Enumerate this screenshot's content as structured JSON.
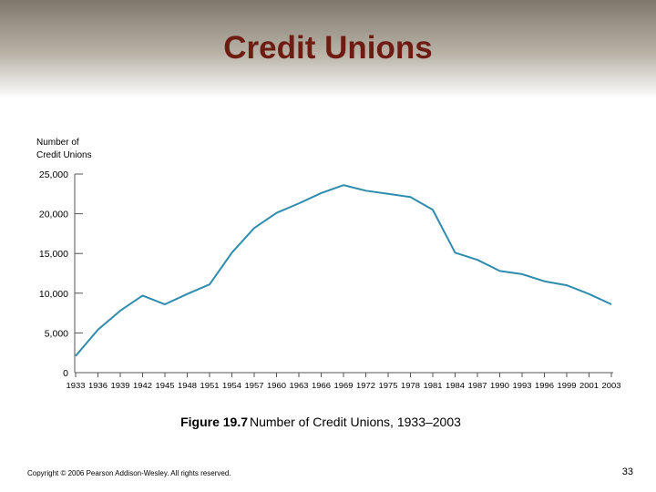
{
  "slide": {
    "title": "Credit Unions",
    "caption_label": "Figure 19.7",
    "caption_text": "Number of Credit Unions, 1933–2003",
    "copyright": "Copyright © 2006 Pearson Addison-Wesley. All rights reserved.",
    "page_number": 33
  },
  "chart_data": {
    "type": "line",
    "y_label": [
      "Number of",
      "Credit Unions"
    ],
    "categories": [
      "1933",
      "1936",
      "1939",
      "1942",
      "1945",
      "1948",
      "1951",
      "1954",
      "1957",
      "1960",
      "1963",
      "1966",
      "1969",
      "1972",
      "1975",
      "1978",
      "1981",
      "1984",
      "1987",
      "1990",
      "1993",
      "1996",
      "1999",
      "2001",
      "2003"
    ],
    "values": [
      2100,
      5400,
      7800,
      9700,
      8600,
      9900,
      11100,
      15100,
      18200,
      20100,
      21300,
      22600,
      23600,
      22900,
      22500,
      22100,
      20500,
      15100,
      14200,
      12800,
      12400,
      11500,
      11000,
      9900,
      8600
    ],
    "color": "#2e8cad",
    "ylim": [
      0,
      25000
    ],
    "yticks": [
      0,
      {
        "value": 5000,
        "label": "5,000"
      },
      {
        "value": 10000,
        "label": "10,000"
      },
      {
        "value": 15000,
        "label": "15,000"
      },
      {
        "value": 20000,
        "label": "20,000"
      },
      {
        "value": 25000,
        "label": "25,000"
      }
    ]
  }
}
